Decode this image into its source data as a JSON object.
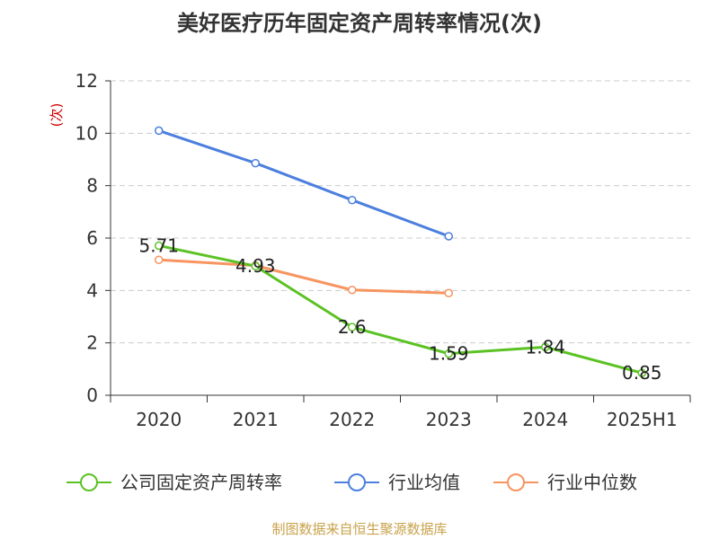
{
  "chart_data": {
    "type": "line",
    "title": "美好医疗历年固定资产周转率情况(次)",
    "ylabel": "(次)",
    "xlabel": "",
    "categories": [
      "2020",
      "2021",
      "2022",
      "2023",
      "2024",
      "2025H1"
    ],
    "ylim": [
      0,
      12
    ],
    "yticks": [
      0,
      2,
      4,
      6,
      8,
      10,
      12
    ],
    "grid": true,
    "legend_position": "bottom",
    "series": [
      {
        "name": "公司固定资产周转率",
        "color": "#5bc224",
        "values": [
          5.71,
          4.93,
          2.6,
          1.59,
          1.84,
          0.85
        ],
        "labels": [
          "5.71",
          "4.93",
          "2.6",
          "1.59",
          "1.84",
          "0.85"
        ]
      },
      {
        "name": "行业均值",
        "color": "#4c7fde",
        "values": [
          10.1,
          8.86,
          7.45,
          6.07,
          null,
          null
        ]
      },
      {
        "name": "行业中位数",
        "color": "#f79460",
        "values": [
          5.17,
          4.95,
          4.02,
          3.9,
          null,
          null
        ]
      }
    ]
  },
  "source_text": "制图数据来自恒生聚源数据库"
}
